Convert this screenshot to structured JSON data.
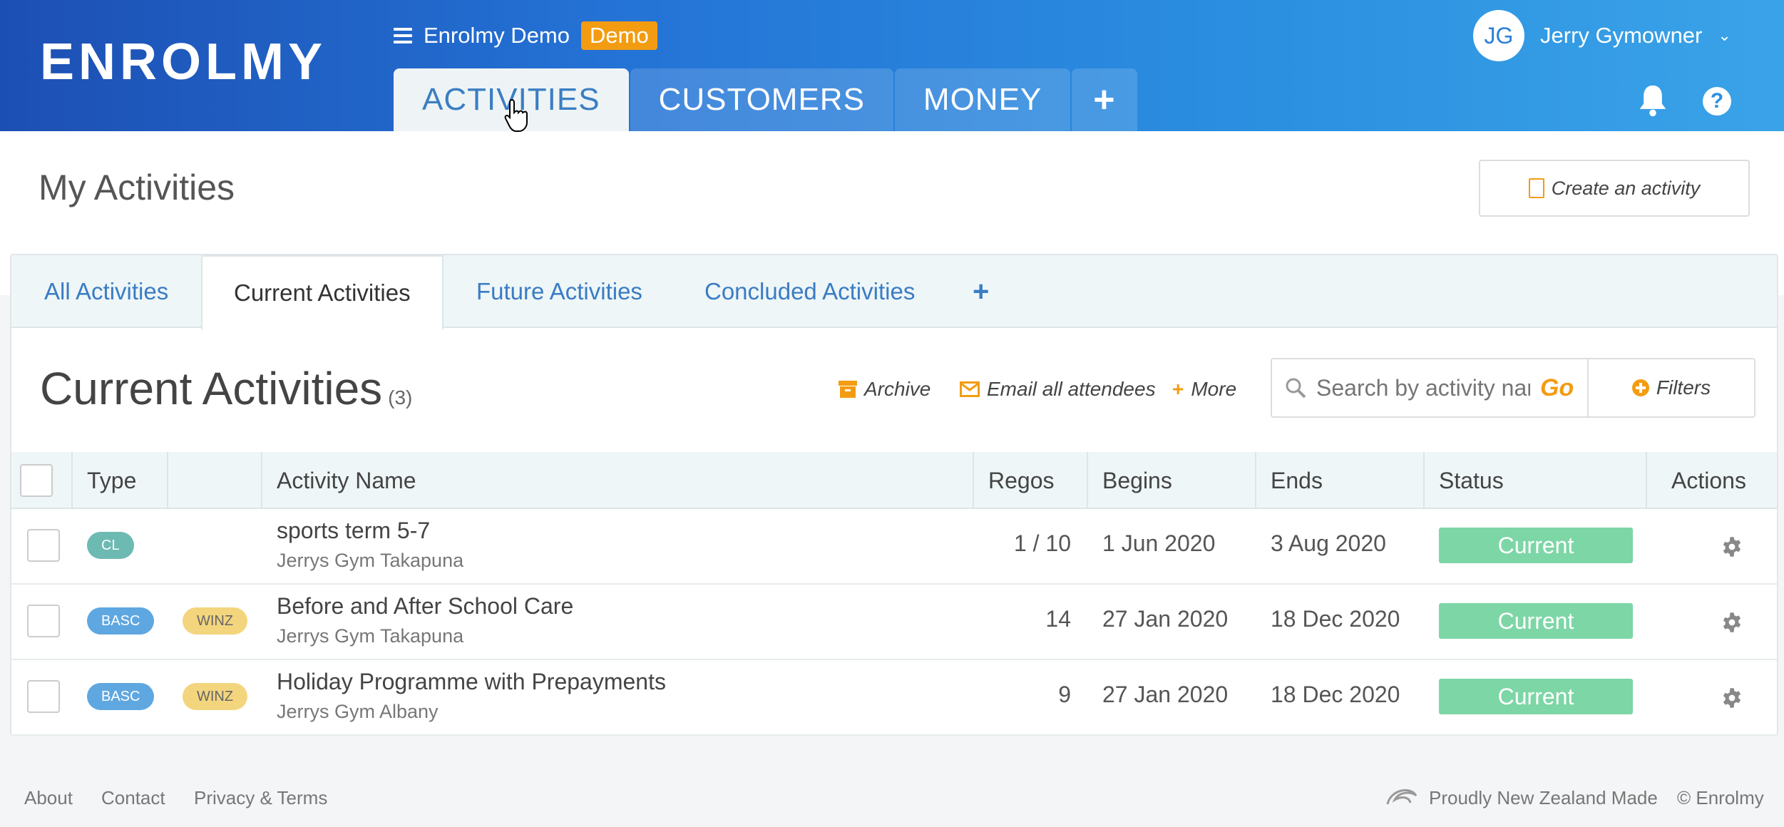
{
  "header": {
    "logo": "ENROLMY",
    "org_name": "Enrolmy Demo",
    "demo_badge": "Demo",
    "tabs": [
      {
        "label": "ACTIVITIES"
      },
      {
        "label": "CUSTOMERS"
      },
      {
        "label": "MONEY"
      },
      {
        "label": "+"
      }
    ],
    "user": {
      "initials": "JG",
      "name": "Jerry Gymowner"
    },
    "help": "?"
  },
  "page": {
    "title": "My Activities",
    "create_label": "Create an activity"
  },
  "subtabs": [
    {
      "label": "All Activities"
    },
    {
      "label": "Current Activities"
    },
    {
      "label": "Future Activities"
    },
    {
      "label": "Concluded Activities"
    },
    {
      "label": "+"
    }
  ],
  "list": {
    "title": "Current Activities",
    "count": "(3)",
    "archive_label": "Archive",
    "email_label": "Email all attendees",
    "more_label": "More",
    "search_placeholder": "Search by activity nam",
    "go_label": "Go",
    "filters_label": "Filters"
  },
  "table": {
    "headers": {
      "type": "Type",
      "name": "Activity Name",
      "regos": "Regos",
      "begins": "Begins",
      "ends": "Ends",
      "status": "Status",
      "actions": "Actions"
    },
    "rows": [
      {
        "type": "CL",
        "tag": "",
        "name": "sports term 5-7",
        "location": "Jerrys Gym Takapuna",
        "regos": "1 / 10",
        "begins": "1 Jun 2020",
        "ends": "3 Aug 2020",
        "status": "Current"
      },
      {
        "type": "BASC",
        "tag": "WINZ",
        "name": "Before and After School Care",
        "location": "Jerrys Gym Takapuna",
        "regos": "14",
        "begins": "27 Jan 2020",
        "ends": "18 Dec 2020",
        "status": "Current"
      },
      {
        "type": "BASC",
        "tag": "WINZ",
        "name": "Holiday Programme with Prepayments",
        "location": "Jerrys Gym Albany",
        "regos": "9",
        "begins": "27 Jan 2020",
        "ends": "18 Dec 2020",
        "status": "Current"
      }
    ]
  },
  "footer": {
    "about": "About",
    "contact": "Contact",
    "privacy": "Privacy & Terms",
    "nz_made": "Proudly New Zealand Made",
    "copyright": "© Enrolmy"
  },
  "colors": {
    "accent": "#f39c12",
    "link": "#3a7cc4",
    "status_current": "#7dd6a6",
    "pill_cl": "#6dbab3",
    "pill_basc": "#5fa7e0",
    "pill_winz": "#f3d57e"
  }
}
